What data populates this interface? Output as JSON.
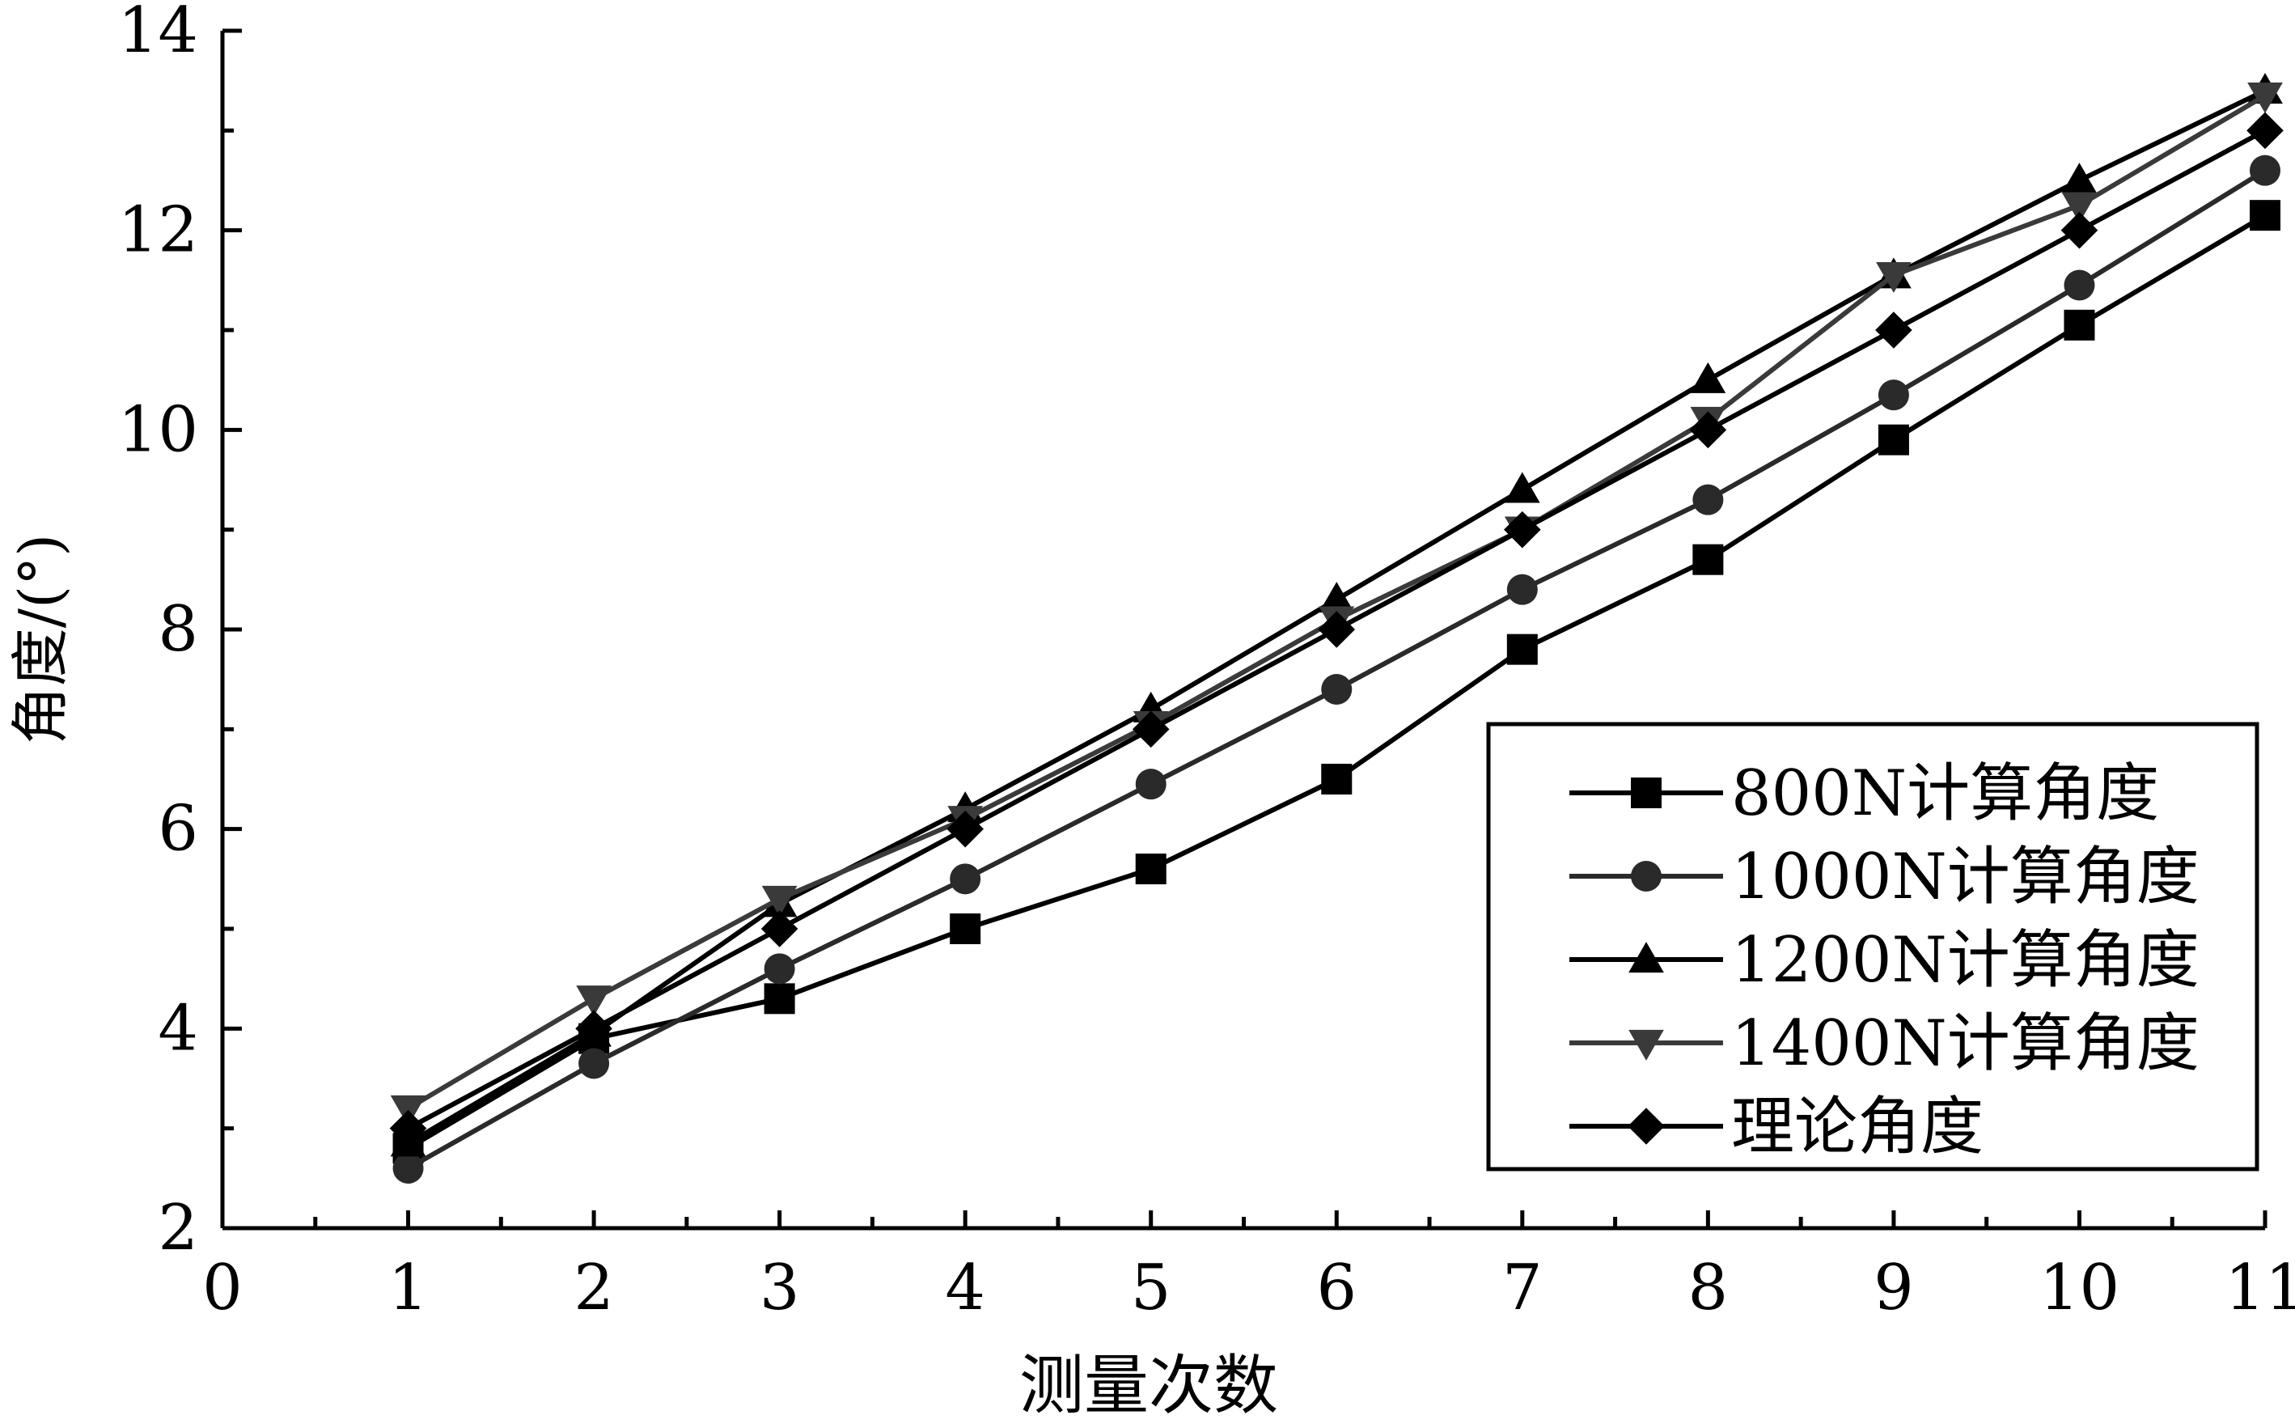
{
  "chart_data": {
    "type": "line",
    "title": "",
    "xlabel": "测量次数",
    "ylabel": "角度/(°)",
    "xlim": [
      0,
      11
    ],
    "ylim": [
      2,
      14
    ],
    "x_ticks": [
      0,
      1,
      2,
      3,
      4,
      5,
      6,
      7,
      8,
      9,
      10,
      11
    ],
    "y_ticks": [
      2,
      4,
      6,
      8,
      10,
      12,
      14
    ],
    "grid": false,
    "legend_position": "bottom-right",
    "x": [
      1,
      2,
      3,
      4,
      5,
      6,
      7,
      8,
      9,
      10,
      11
    ],
    "series": [
      {
        "name": "800N计算角度",
        "marker": "square",
        "color": "#000000",
        "values": [
          2.8,
          3.9,
          4.3,
          5.0,
          5.6,
          6.5,
          7.8,
          8.7,
          9.9,
          11.05,
          12.15
        ]
      },
      {
        "name": "1000N计算角度",
        "marker": "circle",
        "color": "#2a2a2a",
        "values": [
          2.6,
          3.65,
          4.6,
          5.5,
          6.45,
          7.4,
          8.4,
          9.3,
          10.35,
          11.45,
          12.6
        ]
      },
      {
        "name": "1200N计算角度",
        "marker": "triangle-up",
        "color": "#000000",
        "values": [
          2.85,
          3.95,
          5.25,
          6.2,
          7.2,
          8.3,
          9.4,
          10.5,
          11.55,
          12.5,
          13.4
        ]
      },
      {
        "name": "1400N计算角度",
        "marker": "triangle-down",
        "color": "#3a3a3a",
        "values": [
          3.2,
          4.3,
          5.3,
          6.1,
          7.05,
          8.1,
          9.0,
          10.1,
          11.55,
          12.25,
          13.35
        ]
      },
      {
        "name": "理论角度",
        "marker": "diamond",
        "color": "#000000",
        "values": [
          3.0,
          4.0,
          5.0,
          6.0,
          7.0,
          8.0,
          9.0,
          10.0,
          11.0,
          12.0,
          13.0
        ]
      }
    ]
  }
}
